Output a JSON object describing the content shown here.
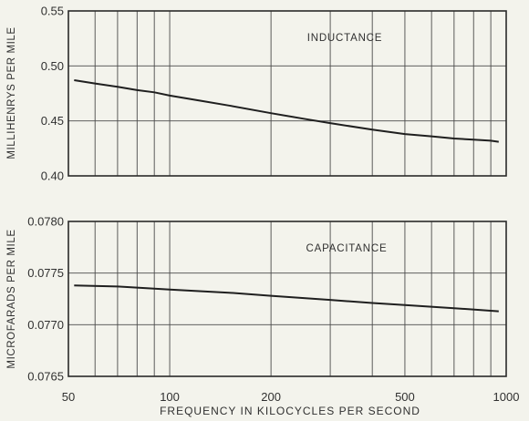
{
  "colors": {
    "background": "#f3f3ec",
    "line": "#1f1f1f",
    "grid": "#4a4a4a"
  },
  "chart_data": [
    {
      "type": "line",
      "annotation": "INDUCTANCE",
      "ylabel": "MILLIHENRYS PER MILE",
      "xlabel": "",
      "xscale": "log",
      "xlim": [
        50,
        1000
      ],
      "ylim": [
        0.4,
        0.55
      ],
      "yticks": [
        "0.40",
        "0.45",
        "0.50",
        "0.55"
      ],
      "grid": true,
      "series": [
        {
          "x": [
            52,
            60,
            70,
            80,
            90,
            100,
            125,
            150,
            200,
            250,
            300,
            400,
            500,
            600,
            700,
            800,
            900,
            950
          ],
          "y": [
            0.487,
            0.484,
            0.481,
            0.478,
            0.476,
            0.473,
            0.468,
            0.464,
            0.457,
            0.452,
            0.448,
            0.442,
            0.438,
            0.436,
            0.434,
            0.433,
            0.432,
            0.431
          ]
        }
      ]
    },
    {
      "type": "line",
      "annotation": "CAPACITANCE",
      "ylabel": "MICROFARADS PER MILE",
      "xlabel": "FREQUENCY IN KILOCYCLES PER SECOND",
      "xscale": "log",
      "xlim": [
        50,
        1000
      ],
      "ylim": [
        0.0765,
        0.078
      ],
      "yticks": [
        "0.0765",
        "0.0770",
        "0.0775",
        "0.0780"
      ],
      "xticks": [
        "50",
        "100",
        "200",
        "500",
        "1000"
      ],
      "grid": true,
      "series": [
        {
          "x": [
            52,
            70,
            100,
            150,
            200,
            300,
            400,
            500,
            700,
            950
          ],
          "y": [
            0.07738,
            0.07737,
            0.07734,
            0.07731,
            0.07728,
            0.07724,
            0.07721,
            0.07719,
            0.07716,
            0.07713
          ]
        }
      ]
    }
  ]
}
